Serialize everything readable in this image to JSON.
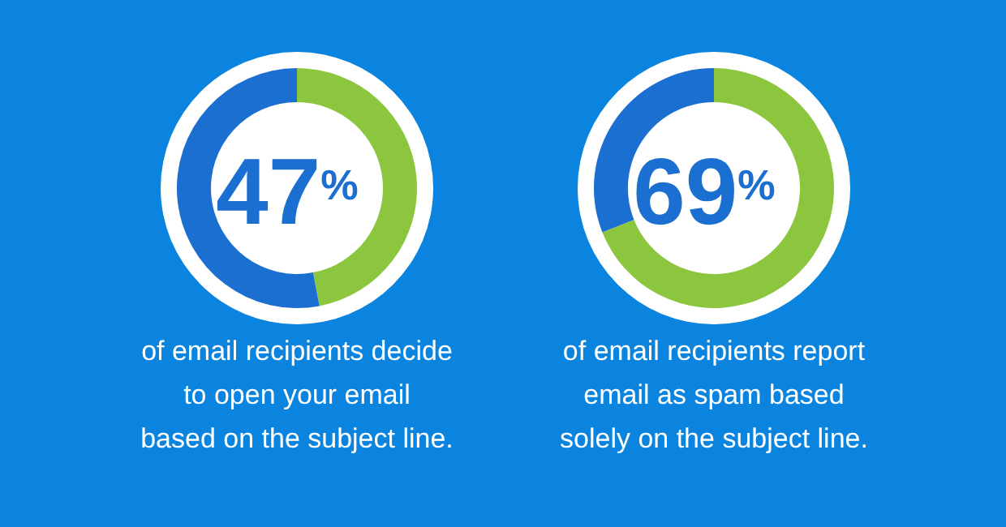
{
  "chart_data": [
    {
      "type": "donut",
      "categories": [
        null,
        null
      ],
      "values": [
        47,
        53
      ],
      "colors": [
        "#8cc63f",
        "#1a6fd1"
      ],
      "title": "47$^{%}$",
      "annotations": [
        "of email recipients decide",
        "to open your email",
        "based on the subject line."
      ]
    },
    {
      "type": "donut",
      "categories": [
        null,
        null
      ],
      "values": [
        69,
        31
      ],
      "colors": [
        "#8cc63f",
        "#1a6fd1"
      ],
      "title": "69$^{%}$",
      "annotations": [
        "of email recipients report",
        "email as spam based",
        "solely on the subject line."
      ]
    }
  ]
}
